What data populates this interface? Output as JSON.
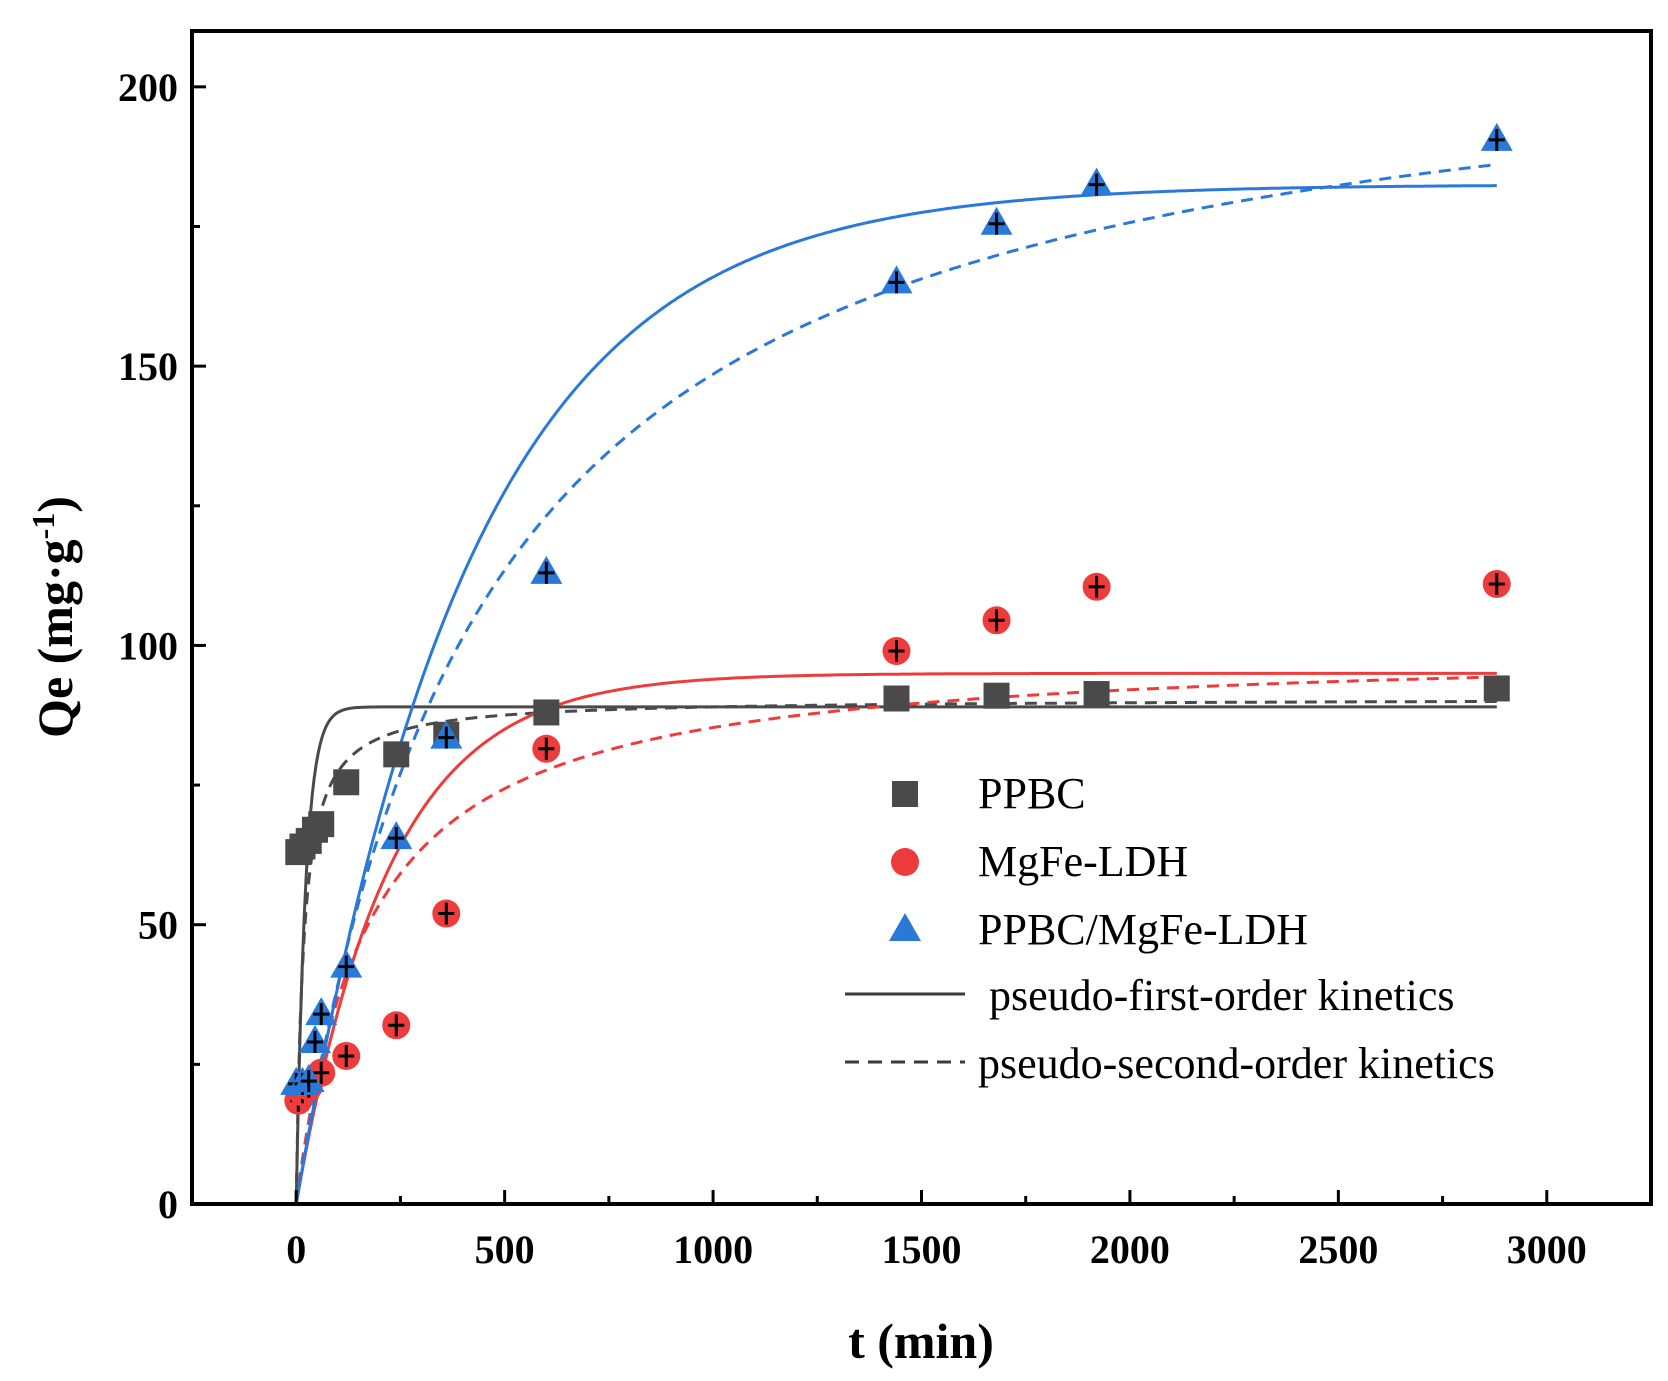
{
  "chart_data": {
    "type": "scatter",
    "xlabel": "t (min)",
    "ylabel": {
      "base": "Qe (mg·g",
      "sup": "-1",
      "close": ")"
    },
    "xlim": [
      -250,
      3250
    ],
    "ylim": [
      0,
      210
    ],
    "xticks": [
      0,
      500,
      1000,
      1500,
      2000,
      2500,
      3000
    ],
    "yticks": [
      0,
      50,
      100,
      150,
      200
    ],
    "xminor": [
      -250,
      250,
      750,
      1250,
      1750,
      2250,
      2750,
      3250
    ],
    "yminor": [
      25,
      75,
      125,
      175
    ],
    "grid": false,
    "legend_position": "center-right",
    "series": [
      {
        "name": "PPBC",
        "marker": "square",
        "color": "#4a4a4a",
        "x": [
          5,
          15,
          30,
          45,
          60,
          120,
          240,
          360,
          600,
          1440,
          1680,
          1920,
          2880
        ],
        "y": [
          63,
          64,
          65,
          67,
          68,
          75.5,
          80.5,
          84,
          88,
          90.5,
          91,
          91.3,
          92.3
        ],
        "pfo": {
          "qe": 89,
          "k": 0.045
        },
        "pso": {
          "qe": 90.5,
          "k": 0.00065
        }
      },
      {
        "name": "MgFe-LDH",
        "marker": "circle",
        "color": "#ee3b3b",
        "x": [
          5,
          15,
          30,
          60,
          120,
          240,
          360,
          600,
          1440,
          1680,
          1920,
          2880
        ],
        "y": [
          18.5,
          20,
          21,
          23.5,
          26.5,
          32,
          52,
          81.5,
          99,
          104.5,
          110.5,
          111
        ],
        "pfo": {
          "qe": 95,
          "k": 0.0045
        },
        "pso": {
          "qe": 100,
          "k": 5.8e-05
        }
      },
      {
        "name": "PPBC/MgFe-LDH",
        "marker": "triangle",
        "color": "#2a78d8",
        "x": [
          0,
          15,
          30,
          45,
          60,
          120,
          240,
          360,
          600,
          1440,
          1680,
          1920,
          2880
        ],
        "y": [
          21.5,
          21.5,
          22,
          29,
          34,
          42.5,
          65.5,
          83.5,
          113,
          165,
          175.5,
          182.5,
          190.5
        ],
        "pfo": {
          "qe": 182.5,
          "k": 0.0024
        },
        "pso": {
          "qe": 215,
          "k": 1.04e-05
        }
      }
    ],
    "legend": {
      "items": [
        "PPBC",
        "MgFe-LDH",
        "PPBC/MgFe-LDH"
      ],
      "pfo_label": " pseudo-first-order kinetics",
      "pso_label": "pseudo-second-order kinetics",
      "line_color": "#3a3a3a"
    }
  }
}
